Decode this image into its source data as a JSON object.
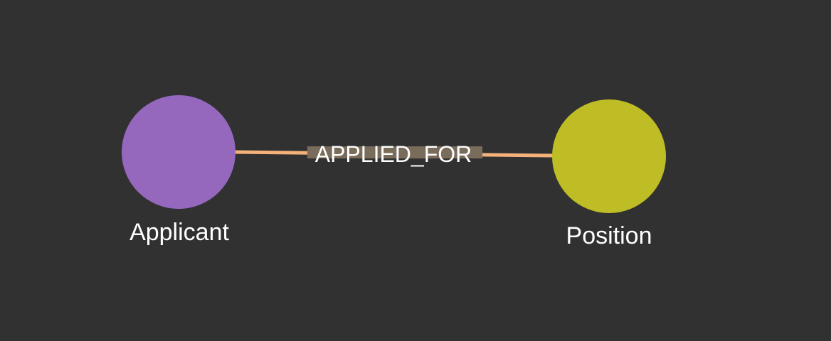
{
  "graph": {
    "background": "#313131",
    "nodes": [
      {
        "id": "applicant",
        "label": "Applicant",
        "color": "#9568be"
      },
      {
        "id": "position",
        "label": "Position",
        "color": "#bfbd25"
      }
    ],
    "edges": [
      {
        "label": "APPLIED_FOR",
        "from": "applicant",
        "to": "position",
        "color": "#f4b17a",
        "label_band_color": "#7a6c5a"
      }
    ]
  }
}
